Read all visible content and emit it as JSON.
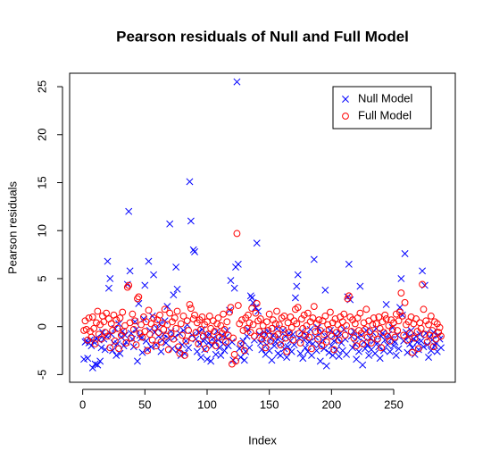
{
  "chart_data": {
    "type": "scatter",
    "title": "Pearson residuals of Null and Full Model",
    "xlabel": "Index",
    "ylabel": "Pearson residuals",
    "xlim": [
      -10.5,
      299.5
    ],
    "ylim": [
      -5.8,
      26.4
    ],
    "xticks": [
      0,
      50,
      100,
      150,
      200,
      250
    ],
    "yticks": [
      -5,
      0,
      5,
      10,
      15,
      20,
      25
    ],
    "legend": "topright",
    "x": [
      1,
      2,
      3,
      4,
      5,
      6,
      7,
      8,
      9,
      10,
      11,
      12,
      13,
      14,
      15,
      16,
      17,
      18,
      19,
      20,
      21,
      22,
      23,
      24,
      25,
      26,
      27,
      28,
      29,
      30,
      31,
      32,
      33,
      34,
      35,
      36,
      37,
      38,
      39,
      40,
      41,
      42,
      43,
      44,
      45,
      46,
      47,
      48,
      49,
      50,
      51,
      52,
      53,
      54,
      55,
      56,
      57,
      58,
      59,
      60,
      61,
      62,
      63,
      64,
      65,
      66,
      67,
      68,
      69,
      70,
      71,
      72,
      73,
      74,
      75,
      76,
      77,
      78,
      79,
      80,
      81,
      82,
      83,
      84,
      85,
      86,
      87,
      88,
      89,
      90,
      91,
      92,
      93,
      94,
      95,
      96,
      97,
      98,
      99,
      100,
      101,
      102,
      103,
      104,
      105,
      106,
      107,
      108,
      109,
      110,
      111,
      112,
      113,
      114,
      115,
      116,
      117,
      118,
      119,
      120,
      121,
      122,
      123,
      124,
      125,
      126,
      127,
      128,
      129,
      130,
      131,
      132,
      133,
      134,
      135,
      136,
      137,
      138,
      139,
      140,
      141,
      142,
      143,
      144,
      145,
      146,
      147,
      148,
      149,
      150,
      151,
      152,
      153,
      154,
      155,
      156,
      157,
      158,
      159,
      160,
      161,
      162,
      163,
      164,
      165,
      166,
      167,
      168,
      169,
      170,
      171,
      172,
      173,
      174,
      175,
      176,
      177,
      178,
      179,
      180,
      181,
      182,
      183,
      184,
      185,
      186,
      187,
      188,
      189,
      190,
      191,
      192,
      193,
      194,
      195,
      196,
      197,
      198,
      199,
      200,
      201,
      202,
      203,
      204,
      205,
      206,
      207,
      208,
      209,
      210,
      211,
      212,
      213,
      214,
      215,
      216,
      217,
      218,
      219,
      220,
      221,
      222,
      223,
      224,
      225,
      226,
      227,
      228,
      229,
      230,
      231,
      232,
      233,
      234,
      235,
      236,
      237,
      238,
      239,
      240,
      241,
      242,
      243,
      244,
      245,
      246,
      247,
      248,
      249,
      250,
      251,
      252,
      253,
      254,
      255,
      256,
      257,
      258,
      259,
      260,
      261,
      262,
      263,
      264,
      265,
      266,
      267,
      268,
      269,
      270,
      271,
      272,
      273,
      274,
      275,
      276,
      277,
      278,
      279,
      280,
      281,
      282,
      283,
      284,
      285,
      286,
      287,
      288
    ],
    "series": [
      {
        "name": "Null Model",
        "color": "#0000ff",
        "marker": "x",
        "values": [
          -3.4,
          -1.6,
          -1.5,
          -3.3,
          -1.7,
          -1.4,
          -2.0,
          -4.3,
          -1.6,
          -3.9,
          -1.2,
          -4.0,
          -1.4,
          -3.6,
          -2.2,
          -0.6,
          -1.3,
          -2.4,
          -1.0,
          6.8,
          4.0,
          5.0,
          -0.8,
          -2.5,
          -1.7,
          -0.2,
          -3.0,
          -1.8,
          0.3,
          -2.8,
          -1.1,
          -0.5,
          -2.0,
          -0.9,
          -1.6,
          4.4,
          12.0,
          5.8,
          -0.7,
          -1.3,
          -2.1,
          0.5,
          -0.3,
          -3.6,
          2.4,
          -0.9,
          -1.2,
          -2.7,
          0.8,
          4.3,
          -1.5,
          -2.4,
          6.8,
          -0.4,
          -2.1,
          1.1,
          5.4,
          -0.6,
          -1.9,
          -0.2,
          -1.0,
          0.3,
          -2.6,
          -1.4,
          -0.8,
          0.6,
          -1.7,
          2.1,
          -1.2,
          10.7,
          -0.5,
          -2.3,
          3.3,
          -1.1,
          6.2,
          3.9,
          -2.4,
          -0.7,
          -3.0,
          -1.9,
          -0.4,
          -2.8,
          -1.5,
          0.2,
          -2.2,
          15.1,
          11.0,
          -0.9,
          8.0,
          7.8,
          -1.3,
          -2.6,
          -0.6,
          -1.8,
          -3.2,
          -0.3,
          -1.5,
          -2.4,
          -1.0,
          -3.4,
          -1.7,
          -0.8,
          -3.6,
          -2.0,
          -1.2,
          -1.6,
          -2.9,
          -0.5,
          -1.4,
          -2.2,
          -3.0,
          -0.9,
          -1.8,
          -2.5,
          -1.1,
          -0.4,
          -2.0,
          1.7,
          4.8,
          -1.6,
          -3.5,
          4.0,
          6.2,
          25.5,
          6.5,
          -2.3,
          -3.2,
          -2.0,
          -1.5,
          -3.5,
          -2.6,
          -1.0,
          -0.3,
          -2.2,
          3.2,
          3.0,
          2.5,
          -1.4,
          2.0,
          8.7,
          1.6,
          -0.8,
          -1.7,
          -2.4,
          -1.2,
          -0.6,
          -2.9,
          -1.9,
          -0.5,
          -2.5,
          -1.3,
          -3.5,
          -0.9,
          -2.0,
          -1.6,
          -0.2,
          -2.8,
          -1.1,
          -3.0,
          -1.7,
          -0.4,
          -2.3,
          -1.0,
          -3.2,
          -2.1,
          -0.7,
          -1.5,
          -2.6,
          -0.8,
          -1.9,
          3.0,
          4.2,
          5.4,
          -1.2,
          -2.8,
          -0.5,
          -3.3,
          -1.4,
          -2.2,
          -0.9,
          -2.6,
          -1.6,
          -0.3,
          -3.0,
          -1.8,
          7.0,
          -1.1,
          -2.5,
          -0.1,
          -1.9,
          -3.6,
          -0.6,
          -1.4,
          -2.3,
          3.8,
          -4.1,
          -1.0,
          -2.7,
          -0.4,
          -2.0,
          -3.0,
          -1.5,
          -0.8,
          -2.4,
          -1.2,
          -3.1,
          -0.7,
          -1.7,
          -2.5,
          -0.3,
          -1.3,
          -2.9,
          3.1,
          6.5,
          2.8,
          -1.0,
          -2.2,
          -0.5,
          -1.8,
          -3.4,
          -1.1,
          -2.6,
          4.2,
          -0.9,
          -4.0,
          -1.6,
          -2.3,
          -0.4,
          -1.9,
          -3.0,
          -1.2,
          -2.4,
          -0.6,
          -1.5,
          -2.8,
          -0.2,
          -1.7,
          -2.1,
          -3.3,
          -1.0,
          -0.7,
          -2.5,
          -1.4,
          2.3,
          -1.9,
          -0.8,
          -2.6,
          -1.3,
          -0.1,
          -2.0,
          -1.6,
          -3.0,
          -0.9,
          -2.3,
          2.0,
          5.0,
          1.2,
          -1.5,
          7.6,
          -0.6,
          -2.7,
          -1.1,
          -1.8,
          -0.4,
          -2.2,
          -1.3,
          -2.9,
          -1.0,
          -1.6,
          -2.4,
          -0.8,
          -1.5,
          5.8,
          -2.1,
          4.3,
          -0.7,
          -1.9,
          -3.2,
          -1.1,
          -2.5,
          -1.4,
          -0.6,
          -2.0,
          -1.7,
          -2.6,
          -0.9,
          -1.3,
          -2.2
        ]
      },
      {
        "name": "Full Model",
        "color": "#ff0000",
        "marker": "o",
        "values": [
          -0.4,
          0.6,
          -0.3,
          -1.4,
          0.9,
          -0.5,
          -1.1,
          1.0,
          -0.2,
          -1.8,
          0.4,
          1.6,
          -0.8,
          0.2,
          -1.3,
          1.1,
          0.5,
          -0.6,
          1.4,
          -1.0,
          0.8,
          -2.2,
          0.3,
          -0.4,
          1.2,
          -1.5,
          0.7,
          -0.2,
          -2.3,
          0.9,
          -0.9,
          1.5,
          -0.5,
          0.1,
          -1.7,
          4.1,
          4.3,
          0.4,
          -1.2,
          1.3,
          -0.3,
          0.6,
          -1.9,
          2.9,
          3.1,
          -0.7,
          0.2,
          -1.1,
          1.0,
          -0.5,
          0.5,
          -2.5,
          1.7,
          -0.8,
          0.3,
          -1.4,
          0.9,
          -0.1,
          -2.0,
          0.7,
          -0.6,
          1.2,
          -1.6,
          0.4,
          -0.3,
          1.8,
          -1.0,
          0.2,
          -2.4,
          1.4,
          -0.7,
          0.5,
          -1.3,
          0.9,
          -0.2,
          1.6,
          -2.1,
          -2.8,
          0.3,
          -0.9,
          1.1,
          -3.0,
          -1.5,
          0.6,
          -0.4,
          2.3,
          1.9,
          -1.2,
          0.8,
          1.2,
          -0.6,
          0.4,
          -1.8,
          0.7,
          -0.3,
          1.0,
          -1.0,
          0.2,
          -2.3,
          0.5,
          -0.8,
          1.1,
          -0.2,
          -1.4,
          0.6,
          -0.5,
          -2.0,
          0.3,
          0.9,
          -1.1,
          0.1,
          -0.7,
          1.3,
          -0.3,
          -1.6,
          0.5,
          -0.9,
          1.5,
          2.0,
          -3.9,
          -1.2,
          -2.9,
          -3.6,
          9.7,
          2.2,
          0.3,
          -1.8,
          0.7,
          -0.4,
          -2.5,
          0.9,
          -0.2,
          1.2,
          0.4,
          -0.6,
          1.9,
          0.2,
          -1.0,
          1.4,
          2.4,
          0.6,
          -0.5,
          0.8,
          -1.3,
          0.1,
          -0.9,
          -2.2,
          0.5,
          -0.4,
          1.3,
          -1.5,
          -0.2,
          0.7,
          -1.0,
          0.3,
          1.6,
          -0.8,
          0.2,
          -1.9,
          0.9,
          -0.3,
          1.1,
          -1.2,
          -2.6,
          0.4,
          -0.6,
          1.0,
          -0.1,
          -1.4,
          0.6,
          1.8,
          0.3,
          2.0,
          -0.7,
          -1.7,
          0.8,
          -0.2,
          1.2,
          -0.9,
          0.1,
          1.4,
          -1.1,
          0.5,
          -2.3,
          0.9,
          2.1,
          -0.5,
          0.3,
          -1.3,
          0.7,
          -0.4,
          -2.0,
          0.6,
          -0.8,
          1.1,
          -1.6,
          0.2,
          -0.3,
          1.5,
          -1.0,
          0.4,
          -2.4,
          0.8,
          -0.6,
          0.2,
          -1.4,
          1.0,
          -0.2,
          0.5,
          1.3,
          -0.9,
          0.1,
          2.9,
          3.2,
          1.0,
          -0.5,
          0.7,
          -1.2,
          0.3,
          -2.0,
          0.9,
          -0.4,
          1.4,
          -0.7,
          -1.8,
          0.4,
          -0.3,
          1.8,
          -1.1,
          0.6,
          -0.5,
          -1.7,
          0.2,
          0.9,
          -0.8,
          0.3,
          -1.3,
          1.0,
          -0.2,
          -2.2,
          0.5,
          -0.6,
          1.2,
          0.8,
          -1.0,
          0.1,
          -1.5,
          0.7,
          -0.3,
          0.4,
          -1.1,
          1.3,
          -0.4,
          0.6,
          1.5,
          3.5,
          1.1,
          -0.9,
          2.5,
          0.2,
          -1.4,
          0.5,
          -0.7,
          1.0,
          -2.7,
          0.3,
          -1.2,
          0.8,
          -0.5,
          -2.3,
          0.4,
          -0.2,
          4.4,
          1.8,
          -0.8,
          0.6,
          -1.6,
          0.2,
          -0.9,
          1.1,
          -0.4,
          -2.1,
          0.5,
          -1.3,
          0.3,
          -0.6,
          -0.1,
          -1.0
        ]
      }
    ]
  }
}
